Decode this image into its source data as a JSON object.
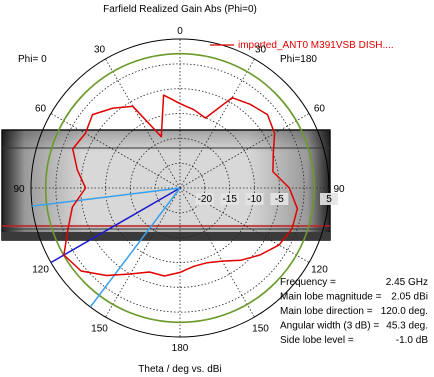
{
  "chart_data": {
    "type": "polar",
    "title": "Farfield Realized Gain Abs (Phi=0)",
    "xlabel": "Theta / deg vs. dBi",
    "phi_left": "Phi=  0",
    "phi_right": "Phi=180",
    "angle_ticks": [
      {
        "deg": 0,
        "label": "0"
      },
      {
        "deg": 30,
        "label": "30"
      },
      {
        "deg": 60,
        "label": "60"
      },
      {
        "deg": 90,
        "label": "90"
      },
      {
        "deg": 120,
        "label": "120"
      },
      {
        "deg": 150,
        "label": "150"
      },
      {
        "deg": 180,
        "label": "180"
      }
    ],
    "radial_ticks": [
      "-20",
      "-15",
      "-10",
      "-5",
      "5"
    ],
    "rlim": [
      -25,
      5
    ],
    "series": [
      {
        "name": "imported_ANT0 M391VSB DISH....",
        "color": "#e00000",
        "theta_deg": [
          0,
          10,
          20,
          30,
          40,
          50,
          60,
          70,
          80,
          90,
          100,
          110,
          120,
          130,
          140,
          150,
          160,
          170,
          180,
          190,
          200,
          210,
          220,
          230,
          240,
          250,
          260,
          270,
          280,
          290,
          300,
          310,
          320,
          330,
          340,
          350
        ],
        "gain_dbi": [
          -8,
          -6,
          -14,
          -6,
          -4,
          -2,
          -3,
          -2,
          -4,
          -6,
          -3,
          -1,
          2,
          1,
          -2,
          -5,
          -7,
          -7,
          -8,
          -9,
          -9,
          -8,
          -6,
          -4,
          -2,
          -1,
          -1,
          -3,
          -6,
          -5,
          -3,
          -2,
          -3,
          -4,
          -10,
          -9
        ]
      }
    ],
    "reference_circle": {
      "color": "#6a9a2a",
      "value_dbi": 2.05
    },
    "lobes": [
      {
        "name": "main-lobe",
        "theta_deg": 120,
        "color": "#1a1acc"
      },
      {
        "name": "beamwidth-edge-1",
        "theta_deg": 97,
        "color": "#3aa0ee"
      },
      {
        "name": "beamwidth-edge-2",
        "theta_deg": 143,
        "color": "#3aa0ee"
      }
    ],
    "info": [
      {
        "label": "Frequency =",
        "value": "2.45 GHz"
      },
      {
        "label": "Main lobe magnitude =",
        "value": "2.05 dBi"
      },
      {
        "label": "Main lobe direction =",
        "value": "120.0 deg."
      },
      {
        "label": "Angular width (3 dB) =",
        "value": "45.3 deg."
      },
      {
        "label": "Side lobe level =",
        "value": "-1.0 dB"
      }
    ],
    "grid": true,
    "overlay_image": "radio-device-photo"
  }
}
